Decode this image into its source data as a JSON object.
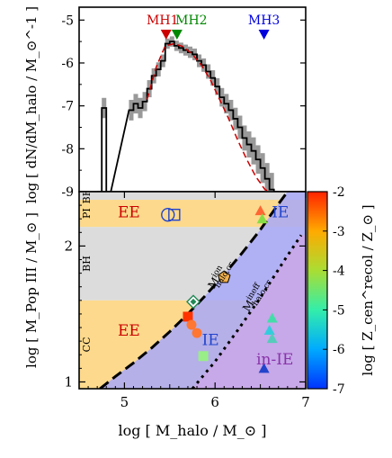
{
  "chart_data": [
    {
      "type": "line",
      "panel": "top",
      "ylabel": "log [ dN/dM_halo / M_⊙^-1 ]",
      "xlim": [
        4.5,
        7.0
      ],
      "ylim": [
        -9,
        -4.7
      ],
      "yticks": [
        -9,
        -8,
        -7,
        -6,
        -5
      ],
      "ytick_labels": [
        "-9",
        "-8",
        "-7",
        "-6",
        "-5"
      ],
      "markers": [
        {
          "label": "MH1",
          "x": 5.46,
          "color": "#cc0000"
        },
        {
          "label": "MH2",
          "x": 5.58,
          "color": "#008800"
        },
        {
          "label": "MH3",
          "x": 6.54,
          "color": "#0000dd"
        }
      ],
      "histogram": {
        "x": [
          4.7,
          4.75,
          4.8,
          5.05,
          5.1,
          5.15,
          5.2,
          5.25,
          5.3,
          5.35,
          5.4,
          5.45,
          5.5,
          5.55,
          5.6,
          5.65,
          5.7,
          5.75,
          5.8,
          5.85,
          5.9,
          5.95,
          6.0,
          6.05,
          6.1,
          6.15,
          6.2,
          6.25,
          6.3,
          6.35,
          6.4,
          6.45,
          6.5,
          6.55,
          6.6,
          6.65
        ],
        "y": [
          -9.0,
          -7.05,
          -9.0,
          -7.1,
          -6.95,
          -7.05,
          -6.9,
          -6.6,
          -6.3,
          -6.15,
          -5.95,
          -5.55,
          -5.5,
          -5.6,
          -5.65,
          -5.7,
          -5.75,
          -5.8,
          -5.95,
          -6.05,
          -6.2,
          -6.35,
          -6.55,
          -6.8,
          -6.95,
          -7.1,
          -7.3,
          -7.5,
          -7.75,
          -7.9,
          -8.05,
          -8.25,
          -8.45,
          -8.7,
          -8.95,
          -9.0
        ]
      },
      "fit": {
        "x": [
          5.25,
          5.35,
          5.45,
          5.55,
          5.65,
          5.75,
          5.85,
          5.95,
          6.05,
          6.15,
          6.25,
          6.35,
          6.45,
          6.55,
          6.6
        ],
        "y": [
          -6.85,
          -6.1,
          -5.6,
          -5.55,
          -5.62,
          -5.8,
          -6.05,
          -6.4,
          -6.85,
          -7.3,
          -7.8,
          -8.25,
          -8.65,
          -8.95,
          -9.0
        ]
      }
    },
    {
      "type": "scatter",
      "panel": "bottom",
      "xlabel": "log [ M_halo / M_⊙ ]",
      "ylabel": "log [ M_Pop III / M_⊙ ]",
      "xlim": [
        4.5,
        7.0
      ],
      "ylim": [
        0.95,
        2.4
      ],
      "xticks": [
        5,
        6,
        7
      ],
      "xtick_labels": [
        "5",
        "6",
        "7"
      ],
      "yticks": [
        1,
        2
      ],
      "ytick_labels": [
        "1",
        "2"
      ],
      "colorbar": {
        "label": "log [ Z_cen^recol / Z_⊙ ]",
        "range": [
          -7,
          -2
        ],
        "ticks": [
          -7,
          -6,
          -5,
          -4,
          -3,
          -2
        ],
        "tick_labels": [
          "-7",
          "-6",
          "-5",
          "-4",
          "-3",
          "-2"
        ],
        "colors": [
          "#0033ff",
          "#00aaff",
          "#33eeaa",
          "#aadd33",
          "#ffaa00",
          "#ff2200"
        ]
      },
      "bands": [
        {
          "name": "BH",
          "y0": 2.34,
          "y1": 2.4,
          "color": "#dcdcdc"
        },
        {
          "name": "PI",
          "y0": 2.14,
          "y1": 2.34,
          "color": "#fcd98c"
        },
        {
          "name": "BH",
          "y0": 1.6,
          "y1": 2.14,
          "color": "#dcdcdc"
        },
        {
          "name": "CC",
          "y0": 0.95,
          "y1": 1.6,
          "color": "#fcd98c"
        }
      ],
      "region_labels": [
        {
          "text": "EE",
          "x": 5.05,
          "y": 2.25,
          "color": "#cc0000"
        },
        {
          "text": "IE",
          "x": 6.72,
          "y": 2.25,
          "color": "#2244cc"
        },
        {
          "text": "EE",
          "x": 5.05,
          "y": 1.38,
          "color": "#cc0000"
        },
        {
          "text": "IE",
          "x": 5.95,
          "y": 1.31,
          "color": "#2244cc"
        },
        {
          "text": "in-IE",
          "x": 6.66,
          "y": 1.17,
          "color": "#8833aa"
        }
      ],
      "curves": [
        {
          "name": "M_halo,cr^ion",
          "x": [
            4.73,
            4.9,
            5.1,
            5.3,
            5.5,
            5.7,
            5.9,
            6.1,
            6.3,
            6.5,
            6.7,
            6.8
          ],
          "y": [
            0.95,
            1.04,
            1.14,
            1.25,
            1.37,
            1.5,
            1.64,
            1.79,
            1.95,
            2.12,
            2.31,
            2.4
          ]
        },
        {
          "name": "M_halo,cr^ineff",
          "x": [
            5.75,
            6.0,
            6.25,
            6.5,
            6.75,
            6.95
          ],
          "y": [
            0.95,
            1.15,
            1.38,
            1.62,
            1.88,
            2.08
          ]
        }
      ],
      "curve_labels": [
        {
          "text": "M",
          "sup": "ion",
          "sub": "halo,cr",
          "x": 6.08,
          "y": 1.78
        },
        {
          "text": "M",
          "sup": "ineff",
          "sub": "halo,cr",
          "x": 6.48,
          "y": 1.63
        }
      ],
      "points": [
        {
          "x": 5.48,
          "y": 2.23,
          "shape": "circle-open",
          "color": "#2244cc"
        },
        {
          "x": 5.55,
          "y": 2.23,
          "shape": "square-open",
          "color": "#2244cc"
        },
        {
          "x": 6.5,
          "y": 2.26,
          "shape": "triangle",
          "color": "#ff6633"
        },
        {
          "x": 6.52,
          "y": 2.2,
          "shape": "triangle",
          "color": "#88dd44"
        },
        {
          "x": 6.1,
          "y": 1.77,
          "shape": "pentagon",
          "color": "#f0b050"
        },
        {
          "x": 5.76,
          "y": 1.59,
          "shape": "diamond-open",
          "color": "#228855"
        },
        {
          "x": 5.7,
          "y": 1.48,
          "shape": "square",
          "color": "#ff3300"
        },
        {
          "x": 5.74,
          "y": 1.42,
          "shape": "circle",
          "color": "#ff7733"
        },
        {
          "x": 5.8,
          "y": 1.36,
          "shape": "circle",
          "color": "#ff7733"
        },
        {
          "x": 5.87,
          "y": 1.19,
          "shape": "square",
          "color": "#99ee88"
        },
        {
          "x": 6.63,
          "y": 1.47,
          "shape": "triangle",
          "color": "#44ddaa"
        },
        {
          "x": 6.6,
          "y": 1.38,
          "shape": "triangle",
          "color": "#33ccdd"
        },
        {
          "x": 6.63,
          "y": 1.32,
          "shape": "triangle",
          "color": "#55ccbb"
        },
        {
          "x": 6.54,
          "y": 1.1,
          "shape": "triangle",
          "color": "#2244cc"
        }
      ]
    }
  ]
}
